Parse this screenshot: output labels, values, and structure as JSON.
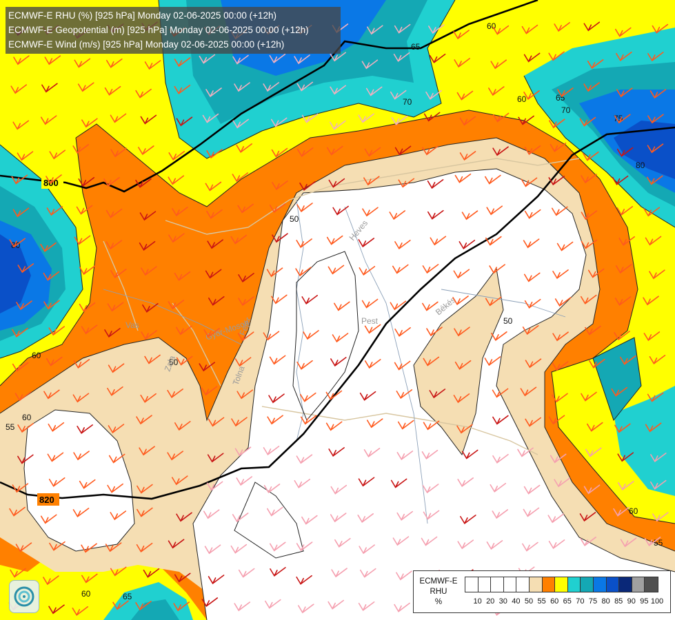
{
  "header": {
    "titles": [
      "ECMWF-E RHU (%) [925 hPa] Monday 02-06-2025 00:00 (+12h)",
      "ECMWF-E Geopotential (m) [925 hPa] Monday 02-06-2025 00:00 (+12h)",
      "ECMWF-E Wind (m/s) [925 hPa] Monday 02-06-2025 00:00 (+12h)"
    ]
  },
  "legend": {
    "model": "ECMWF-E",
    "variable": "RHU",
    "unit": "%",
    "ticks": [
      "10",
      "20",
      "30",
      "40",
      "50",
      "55",
      "60",
      "65",
      "70",
      "75",
      "80",
      "85",
      "90",
      "95",
      "100"
    ],
    "colors": [
      "#ffffff",
      "#ffffff",
      "#ffffff",
      "#ffffff",
      "#ffffff",
      "#f5deb3",
      "#ff8000",
      "#ffff00",
      "#20d0d0",
      "#14a8b4",
      "#0a78e6",
      "#0a50c8",
      "#0a2878",
      "#a0a0a0",
      "#505050"
    ]
  },
  "map_labels": {
    "geopotential": [
      "800",
      "820"
    ],
    "rhu_contours": [
      "60",
      "65",
      "70",
      "75",
      "80",
      "60",
      "65",
      "70",
      "80",
      "60",
      "55",
      "60",
      "55",
      "60",
      "65",
      "50",
      "50",
      "50",
      "60"
    ],
    "places": [
      "Pest",
      "Heves",
      "Békés",
      "Vas",
      "Tolna",
      "Fejér",
      "Győr-Moson",
      "Zala"
    ]
  },
  "colors": {
    "white_zone": "#ffffff",
    "tan_zone": "#f5deb3",
    "orange_zone": "#ff8000",
    "yellow_zone": "#ffff00",
    "cyan_zone": "#20d0d0",
    "teal_zone": "#14a8b4",
    "blue_zone": "#0a78e6",
    "darkblue_zone": "#0a50c8",
    "navy_zone": "#0a2878"
  }
}
